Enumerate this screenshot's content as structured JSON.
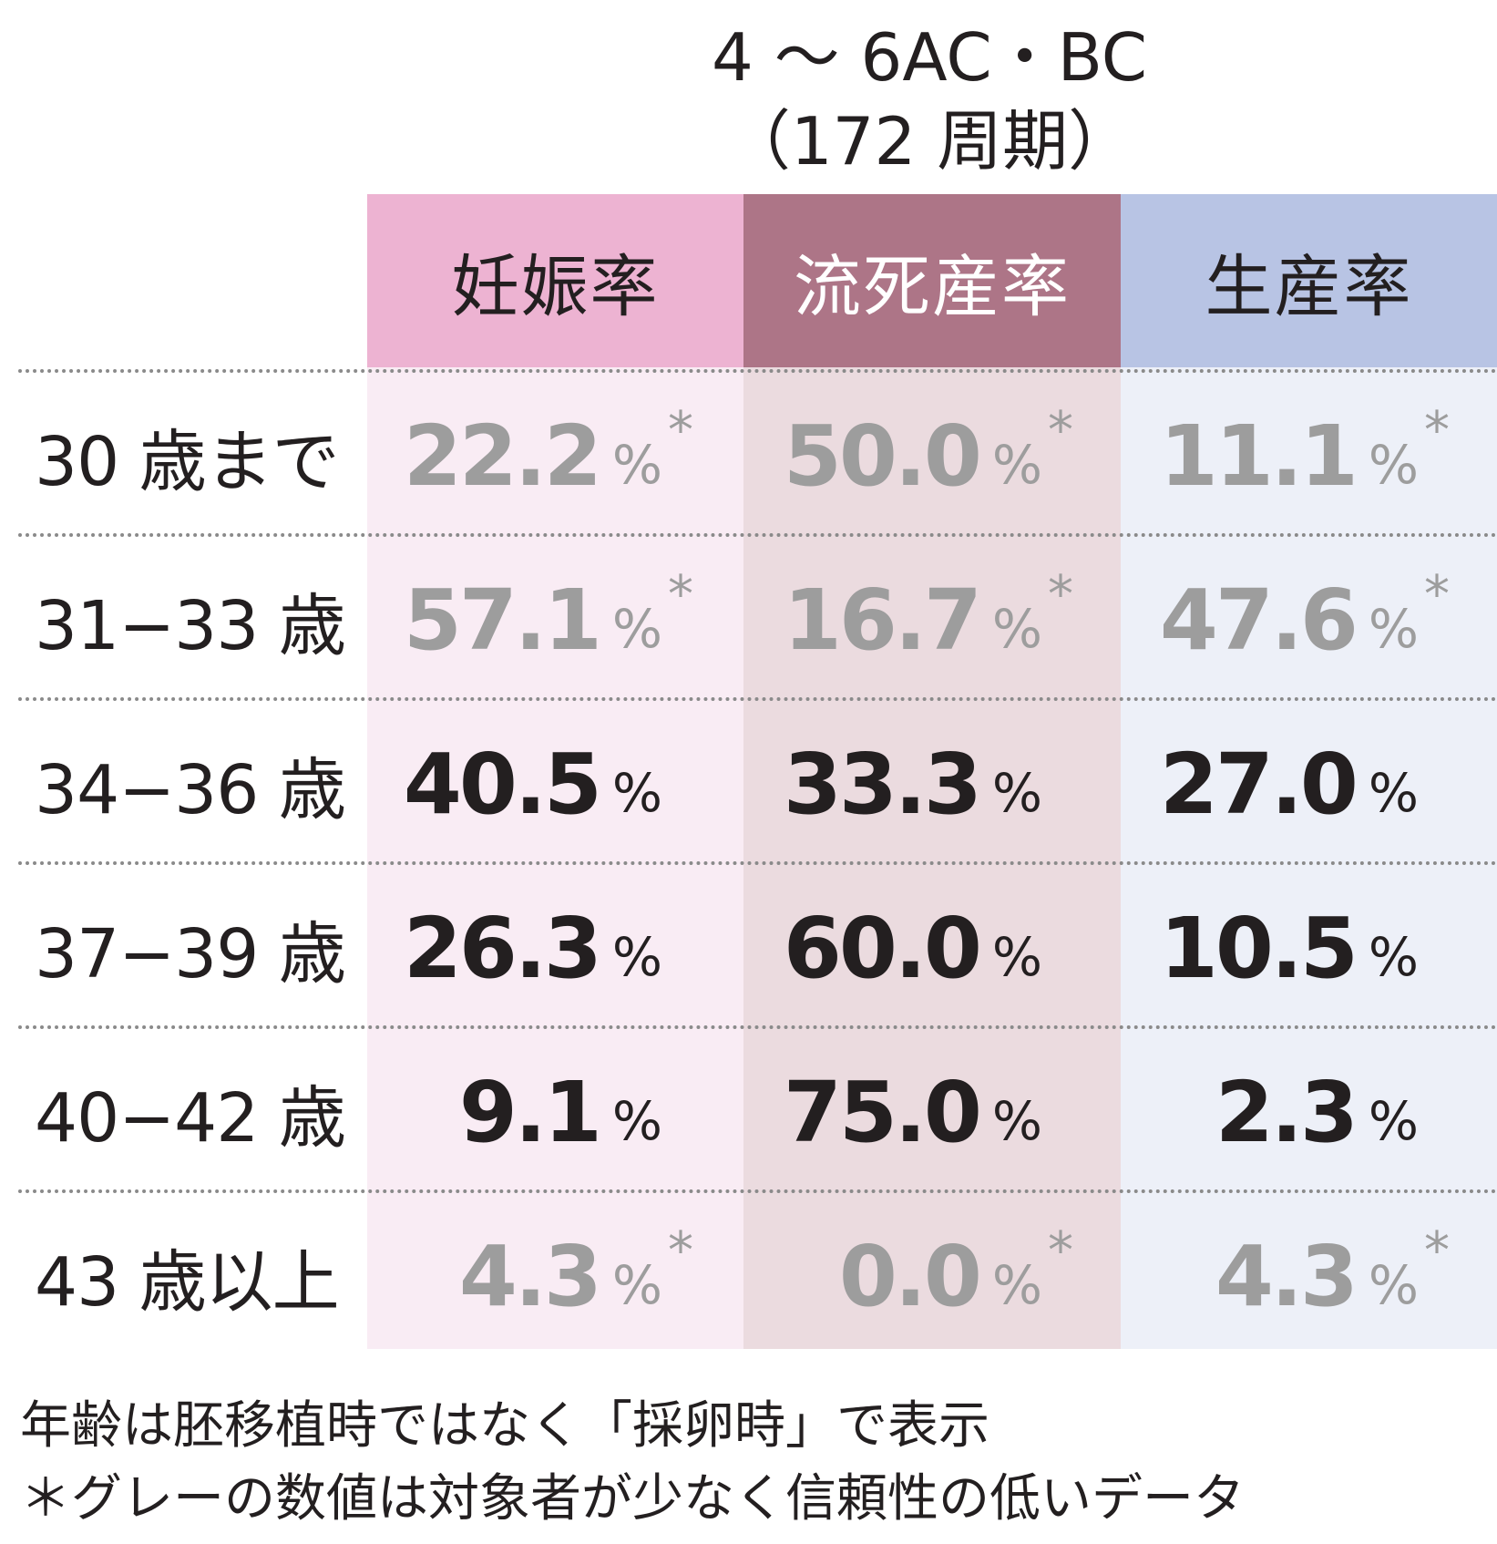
{
  "chart_data": {
    "type": "table",
    "title": [
      "4 〜 6AC・BC",
      "（172 周期）"
    ],
    "columns": [
      {
        "label": "妊娠率",
        "header_color": "#edb3d2",
        "body_color": "#f9ecf4",
        "header_text_color": "#231f20"
      },
      {
        "label": "流死産率",
        "header_color": "#ad7587",
        "body_color": "#ebdbdf",
        "header_text_color": "#ffffff"
      },
      {
        "label": "生産率",
        "header_color": "#b8c4e4",
        "body_color": "#edf0f8",
        "header_text_color": "#231f20"
      }
    ],
    "unit": "%",
    "rows": [
      {
        "label": "30 歳まで",
        "low_reliability": true,
        "values": [
          "22.2",
          "50.0",
          "11.1"
        ]
      },
      {
        "label": "31−33 歳",
        "low_reliability": true,
        "values": [
          "57.1",
          "16.7",
          "47.6"
        ]
      },
      {
        "label": "34−36 歳",
        "low_reliability": false,
        "values": [
          "40.5",
          "33.3",
          "27.0"
        ]
      },
      {
        "label": "37−39 歳",
        "low_reliability": false,
        "values": [
          "26.3",
          "60.0",
          "10.5"
        ]
      },
      {
        "label": "40−42 歳",
        "low_reliability": false,
        "values": [
          "9.1",
          "75.0",
          "2.3"
        ]
      },
      {
        "label": "43 歳以上",
        "low_reliability": true,
        "values": [
          "4.3",
          "0.0",
          "4.3"
        ]
      }
    ],
    "low_reliability_marker": "*",
    "value_color_normal": "#231f20",
    "value_color_low_reliability": "#9d9d9d"
  },
  "footnotes": [
    "年齢は胚移植時ではなく「採卵時」で表示",
    "＊グレーの数値は対象者が少なく信頼性の低いデータ"
  ]
}
